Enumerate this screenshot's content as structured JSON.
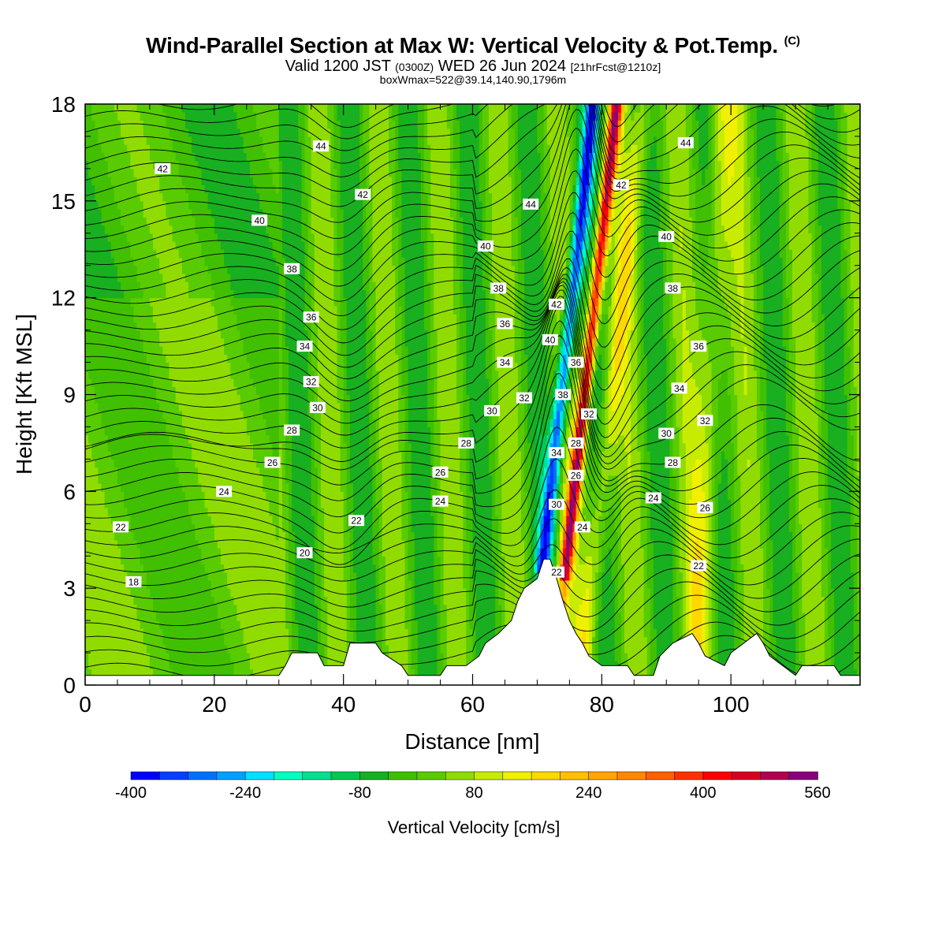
{
  "header": {
    "title": "Wind-Parallel Section at Max W: Vertical Velocity & Pot.Temp.",
    "copyright": "(C)",
    "valid_prefix": "Valid 1200 JST",
    "valid_z": "(0300Z)",
    "valid_date": "WED 26 Jun 2024",
    "forecast": "[21hrFcst@1210z]",
    "boxmax": "boxWmax=522@39.14,140.90,1796m"
  },
  "chart_data": {
    "type": "heatmap",
    "title": "Wind-Parallel Section at Max W: Vertical Velocity & Pot.Temp.",
    "xlabel": "Distance [nm]",
    "ylabel": "Height [Kft MSL]",
    "xlim": [
      0,
      120
    ],
    "ylim": [
      0,
      18
    ],
    "x_ticks": [
      0,
      20,
      40,
      60,
      80,
      100
    ],
    "y_ticks": [
      0,
      3,
      6,
      9,
      12,
      15,
      18
    ],
    "colorbar": {
      "label": "Vertical Velocity [cm/s]",
      "tick_labels": [
        "-400",
        "-240",
        "-80",
        "80",
        "240",
        "400",
        "560"
      ],
      "tick_values": [
        -400,
        -240,
        -80,
        80,
        240,
        400,
        560
      ],
      "bounds": [
        -400,
        -360,
        -320,
        -280,
        -240,
        -200,
        -160,
        -120,
        -80,
        -40,
        0,
        40,
        80,
        120,
        160,
        200,
        240,
        280,
        320,
        360,
        400,
        440,
        480,
        520,
        560
      ],
      "colors": [
        "#0000ff",
        "#0040ff",
        "#0070ff",
        "#00a0ff",
        "#00e0ff",
        "#00ffc0",
        "#00e090",
        "#00c850",
        "#18b020",
        "#40c000",
        "#58cc00",
        "#90dc00",
        "#c8ec00",
        "#f0f000",
        "#ffd800",
        "#ffc000",
        "#ffa400",
        "#ff8800",
        "#ff6000",
        "#ff3000",
        "#ff0000",
        "#d80020",
        "#b00050",
        "#880080"
      ]
    },
    "max_w": 522,
    "terrain_kft": [
      [
        0,
        0.3
      ],
      [
        30,
        0.3
      ],
      [
        31,
        0.6
      ],
      [
        32,
        1.0
      ],
      [
        36,
        1.0
      ],
      [
        37,
        0.6
      ],
      [
        40,
        0.6
      ],
      [
        41,
        1.3
      ],
      [
        45,
        1.3
      ],
      [
        46,
        1.0
      ],
      [
        49,
        0.6
      ],
      [
        50,
        0.3
      ],
      [
        55,
        0.3
      ],
      [
        56,
        0.6
      ],
      [
        59,
        0.6
      ],
      [
        61,
        0.9
      ],
      [
        62,
        1.3
      ],
      [
        64,
        1.6
      ],
      [
        66,
        2.0
      ],
      [
        67,
        2.6
      ],
      [
        68,
        3.0
      ],
      [
        70,
        3.3
      ],
      [
        71,
        3.9
      ],
      [
        72,
        3.9
      ],
      [
        73,
        3.3
      ],
      [
        74,
        2.6
      ],
      [
        75,
        2.0
      ],
      [
        76,
        1.6
      ],
      [
        77,
        1.3
      ],
      [
        78,
        0.9
      ],
      [
        80,
        0.6
      ],
      [
        84,
        0.6
      ],
      [
        85,
        0.3
      ],
      [
        88,
        0.3
      ],
      [
        89,
        0.9
      ],
      [
        91,
        1.3
      ],
      [
        94,
        1.6
      ],
      [
        95,
        1.3
      ],
      [
        96,
        0.9
      ],
      [
        99,
        0.6
      ],
      [
        100,
        1.0
      ],
      [
        102,
        1.3
      ],
      [
        104,
        1.6
      ],
      [
        105,
        1.3
      ],
      [
        106,
        0.9
      ],
      [
        108,
        0.6
      ],
      [
        110,
        0.3
      ],
      [
        111,
        0.6
      ],
      [
        116,
        0.6
      ],
      [
        117,
        0.3
      ],
      [
        120,
        0.3
      ]
    ],
    "theta_contour_labels": [
      {
        "text": "44",
        "x": 36.5,
        "y": 16.7
      },
      {
        "text": "42",
        "x": 12,
        "y": 16.0
      },
      {
        "text": "42",
        "x": 43,
        "y": 15.2
      },
      {
        "text": "44",
        "x": 69,
        "y": 14.9
      },
      {
        "text": "42",
        "x": 83,
        "y": 15.5
      },
      {
        "text": "44",
        "x": 93,
        "y": 16.8
      },
      {
        "text": "40",
        "x": 27,
        "y": 14.4
      },
      {
        "text": "40",
        "x": 62,
        "y": 13.6
      },
      {
        "text": "40",
        "x": 90,
        "y": 13.9
      },
      {
        "text": "38",
        "x": 32,
        "y": 12.9
      },
      {
        "text": "38",
        "x": 64,
        "y": 12.3
      },
      {
        "text": "38",
        "x": 91,
        "y": 12.3
      },
      {
        "text": "36",
        "x": 35,
        "y": 11.4
      },
      {
        "text": "36",
        "x": 65,
        "y": 11.2
      },
      {
        "text": "42",
        "x": 73,
        "y": 11.8
      },
      {
        "text": "40",
        "x": 72,
        "y": 10.7
      },
      {
        "text": "36",
        "x": 76,
        "y": 10.0
      },
      {
        "text": "36",
        "x": 95,
        "y": 10.5
      },
      {
        "text": "34",
        "x": 34,
        "y": 10.5
      },
      {
        "text": "34",
        "x": 65,
        "y": 10.0
      },
      {
        "text": "32",
        "x": 35,
        "y": 9.4
      },
      {
        "text": "38",
        "x": 74,
        "y": 9.0
      },
      {
        "text": "34",
        "x": 92,
        "y": 9.2
      },
      {
        "text": "30",
        "x": 36,
        "y": 8.6
      },
      {
        "text": "32",
        "x": 68,
        "y": 8.9
      },
      {
        "text": "30",
        "x": 63,
        "y": 8.5
      },
      {
        "text": "32",
        "x": 78,
        "y": 8.4
      },
      {
        "text": "32",
        "x": 96,
        "y": 8.2
      },
      {
        "text": "28",
        "x": 32,
        "y": 7.9
      },
      {
        "text": "28",
        "x": 59,
        "y": 7.5
      },
      {
        "text": "28",
        "x": 76,
        "y": 7.5
      },
      {
        "text": "30",
        "x": 90,
        "y": 7.8
      },
      {
        "text": "26",
        "x": 29,
        "y": 6.9
      },
      {
        "text": "26",
        "x": 55,
        "y": 6.6
      },
      {
        "text": "34",
        "x": 73,
        "y": 7.2
      },
      {
        "text": "26",
        "x": 76,
        "y": 6.5
      },
      {
        "text": "28",
        "x": 91,
        "y": 6.9
      },
      {
        "text": "24",
        "x": 21.5,
        "y": 6.0
      },
      {
        "text": "24",
        "x": 55,
        "y": 5.7
      },
      {
        "text": "30",
        "x": 73,
        "y": 5.6
      },
      {
        "text": "24",
        "x": 88,
        "y": 5.8
      },
      {
        "text": "26",
        "x": 96,
        "y": 5.5
      },
      {
        "text": "22",
        "x": 5.5,
        "y": 4.9
      },
      {
        "text": "22",
        "x": 42,
        "y": 5.1
      },
      {
        "text": "24",
        "x": 77,
        "y": 4.9
      },
      {
        "text": "20",
        "x": 34,
        "y": 4.1
      },
      {
        "text": "18",
        "x": 7.5,
        "y": 3.2
      },
      {
        "text": "22",
        "x": 73,
        "y": 3.5
      },
      {
        "text": "22",
        "x": 95,
        "y": 3.7
      }
    ]
  }
}
